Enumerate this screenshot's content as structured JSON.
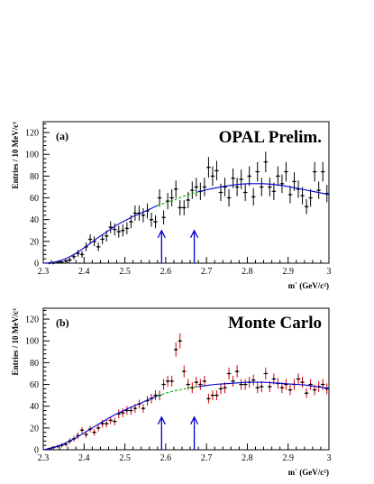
{
  "chart_data": [
    {
      "type": "scatter",
      "panel_label": "(a)",
      "title": "OPAL Prelim.",
      "xlabel": "m´ (GeV/c²)",
      "ylabel": "Entries / 10 MeV/c²",
      "xlim": [
        2.3,
        3.0
      ],
      "ylim": [
        0,
        130
      ],
      "x_ticks": [
        "2.3",
        "2.4",
        "2.5",
        "2.6",
        "2.7",
        "2.8",
        "2.9",
        "3"
      ],
      "y_ticks": [
        "0",
        "20",
        "40",
        "60",
        "80",
        "100",
        "120"
      ],
      "series": [
        {
          "name": "data",
          "style": "points-with-errors",
          "color": "#000000",
          "x": [
            2.315,
            2.325,
            2.335,
            2.345,
            2.355,
            2.365,
            2.375,
            2.385,
            2.395,
            2.405,
            2.415,
            2.425,
            2.435,
            2.445,
            2.455,
            2.465,
            2.475,
            2.485,
            2.495,
            2.505,
            2.515,
            2.525,
            2.535,
            2.545,
            2.555,
            2.565,
            2.575,
            2.585,
            2.595,
            2.605,
            2.615,
            2.625,
            2.635,
            2.645,
            2.655,
            2.665,
            2.675,
            2.685,
            2.695,
            2.705,
            2.715,
            2.725,
            2.735,
            2.745,
            2.755,
            2.765,
            2.775,
            2.785,
            2.795,
            2.805,
            2.815,
            2.825,
            2.835,
            2.845,
            2.855,
            2.865,
            2.875,
            2.885,
            2.895,
            2.905,
            2.915,
            2.925,
            2.935,
            2.945,
            2.955,
            2.965,
            2.975,
            2.985,
            2.995
          ],
          "y": [
            0,
            0,
            1,
            1,
            2,
            3,
            6,
            9,
            8,
            15,
            22,
            20,
            15,
            22,
            25,
            33,
            31,
            29,
            30,
            32,
            38,
            46,
            46,
            44,
            48,
            40,
            38,
            60,
            42,
            57,
            60,
            68,
            51,
            51,
            58,
            67,
            70,
            66,
            70,
            88,
            80,
            85,
            65,
            70,
            60,
            78,
            70,
            77,
            65,
            80,
            61,
            84,
            70,
            93,
            70,
            66,
            80,
            73,
            84,
            63,
            75,
            68,
            62,
            52,
            60,
            84,
            67,
            84,
            64
          ],
          "err": [
            1,
            1,
            1,
            1,
            1.5,
            2,
            2.5,
            3,
            3,
            4,
            4.5,
            4.5,
            4,
            4.5,
            5,
            5.5,
            5.5,
            5.5,
            5.5,
            5.5,
            6,
            7,
            7,
            6.5,
            7,
            6.5,
            6,
            8,
            6.5,
            7.5,
            8,
            8,
            7,
            7,
            7.5,
            8,
            8.5,
            8,
            8.5,
            9.5,
            9,
            9,
            8,
            8.5,
            8,
            9,
            8.5,
            9,
            8,
            9,
            8,
            9,
            8.5,
            9.5,
            8.5,
            8,
            9,
            8.5,
            9,
            8,
            8.5,
            8,
            8,
            7,
            8,
            9,
            8,
            9,
            8
          ]
        },
        {
          "name": "fit",
          "style": "line",
          "color": "#0000cc",
          "x": [
            2.3,
            2.32,
            2.34,
            2.36,
            2.38,
            2.4,
            2.42,
            2.44,
            2.46,
            2.48,
            2.5,
            2.52,
            2.54,
            2.56,
            2.58
          ],
          "y": [
            0,
            0.5,
            2,
            5,
            9,
            14,
            19.5,
            25,
            30,
            35,
            39,
            43,
            46,
            49.5,
            53
          ]
        },
        {
          "name": "fit (interpolated)",
          "style": "dashed",
          "color": "#00aa00",
          "x": [
            2.58,
            2.6,
            2.62,
            2.64,
            2.66,
            2.68
          ],
          "y": [
            53,
            55.5,
            58,
            61,
            63.5,
            65.5
          ]
        },
        {
          "name": "fit",
          "style": "line",
          "color": "#0000cc",
          "x": [
            2.68,
            2.7,
            2.72,
            2.74,
            2.76,
            2.78,
            2.8,
            2.82,
            2.84,
            2.86,
            2.88,
            2.9,
            2.92,
            2.94,
            2.96,
            2.98,
            3.0
          ],
          "y": [
            65.5,
            67.5,
            69,
            70.5,
            71.5,
            72.5,
            73,
            73,
            73,
            72.5,
            71.5,
            70.5,
            69,
            67.5,
            66,
            64.5,
            63
          ]
        }
      ],
      "arrows": [
        {
          "x": 2.59,
          "y_from": 0,
          "y_to": 30,
          "color": "#0000cc"
        },
        {
          "x": 2.67,
          "y_from": 0,
          "y_to": 30,
          "color": "#0000cc"
        }
      ]
    },
    {
      "type": "scatter",
      "panel_label": "(b)",
      "title": "Monte Carlo",
      "xlabel": "m´ (GeV/c²)",
      "ylabel": "Entries / 10 MeV/c²",
      "xlim": [
        2.3,
        3.0
      ],
      "ylim": [
        0,
        130
      ],
      "x_ticks": [
        "2.3",
        "2.4",
        "2.5",
        "2.6",
        "2.7",
        "2.8",
        "2.9",
        "3"
      ],
      "y_ticks": [
        "0",
        "20",
        "40",
        "60",
        "80",
        "100",
        "120"
      ],
      "series": [
        {
          "name": "monte carlo",
          "style": "points-with-errors",
          "color": "#000000",
          "err_color": "#cc0000",
          "x": [
            2.315,
            2.325,
            2.335,
            2.345,
            2.355,
            2.365,
            2.375,
            2.385,
            2.395,
            2.405,
            2.415,
            2.425,
            2.435,
            2.445,
            2.455,
            2.465,
            2.475,
            2.485,
            2.495,
            2.505,
            2.515,
            2.525,
            2.535,
            2.545,
            2.555,
            2.565,
            2.575,
            2.585,
            2.595,
            2.605,
            2.615,
            2.625,
            2.635,
            2.645,
            2.655,
            2.665,
            2.675,
            2.685,
            2.695,
            2.705,
            2.715,
            2.725,
            2.735,
            2.745,
            2.755,
            2.765,
            2.775,
            2.785,
            2.795,
            2.805,
            2.815,
            2.825,
            2.835,
            2.845,
            2.855,
            2.865,
            2.875,
            2.885,
            2.895,
            2.905,
            2.915,
            2.925,
            2.935,
            2.945,
            2.955,
            2.965,
            2.975,
            2.985,
            2.995
          ],
          "y": [
            1,
            2,
            3,
            4,
            5,
            8,
            10,
            13,
            18,
            14,
            19,
            16,
            20,
            24,
            24,
            27,
            26,
            33,
            34,
            36,
            36,
            38,
            42,
            38,
            45,
            47,
            50,
            50,
            60,
            63,
            63,
            92,
            100,
            72,
            60,
            57,
            62,
            60,
            63,
            47,
            50,
            50,
            56,
            57,
            70,
            63,
            72,
            60,
            60,
            62,
            64,
            57,
            58,
            70,
            58,
            65,
            61,
            57,
            60,
            55,
            60,
            65,
            62,
            52,
            60,
            55,
            58,
            60,
            56
          ],
          "err": [
            1,
            1.5,
            1.5,
            2,
            2,
            2.5,
            2.5,
            3,
            3,
            3,
            3,
            3,
            3,
            3.5,
            3.5,
            3.5,
            3.5,
            4,
            4,
            4,
            4,
            4,
            4,
            4,
            4.5,
            4.5,
            4.5,
            4.5,
            5,
            5,
            5,
            6.5,
            7,
            5.5,
            5,
            5,
            5,
            5,
            5,
            4.5,
            4.5,
            4.5,
            5,
            5,
            5.5,
            5,
            5.5,
            5,
            5,
            5,
            5,
            5,
            5,
            5.5,
            5,
            5,
            5,
            5,
            5,
            5,
            5,
            5,
            5,
            4.5,
            5,
            5,
            5,
            5,
            5
          ]
        },
        {
          "name": "fit",
          "style": "line",
          "color": "#0000cc",
          "x": [
            2.3,
            2.32,
            2.34,
            2.36,
            2.38,
            2.4,
            2.42,
            2.44,
            2.46,
            2.48,
            2.5,
            2.52,
            2.54,
            2.56,
            2.58
          ],
          "y": [
            0,
            1.5,
            4,
            7,
            11,
            15.5,
            20,
            24.5,
            29,
            33,
            36.5,
            40,
            43,
            46.5,
            49.5
          ]
        },
        {
          "name": "fit (interpolated)",
          "style": "dashed",
          "color": "#00aa00",
          "x": [
            2.58,
            2.6,
            2.62,
            2.64,
            2.66,
            2.68
          ],
          "y": [
            49.5,
            52,
            54,
            55.5,
            57,
            58
          ]
        },
        {
          "name": "fit",
          "style": "line",
          "color": "#0000cc",
          "x": [
            2.68,
            2.7,
            2.72,
            2.74,
            2.76,
            2.78,
            2.8,
            2.82,
            2.84,
            2.86,
            2.88,
            2.9,
            2.92,
            2.94,
            2.96,
            2.98,
            3.0
          ],
          "y": [
            58,
            59,
            60,
            60.5,
            61,
            61.5,
            62,
            62,
            62,
            61.5,
            61,
            60.5,
            60,
            59.5,
            58.5,
            57.5,
            56.5
          ]
        }
      ],
      "arrows": [
        {
          "x": 2.59,
          "y_from": 0,
          "y_to": 30,
          "color": "#0000cc"
        },
        {
          "x": 2.67,
          "y_from": 0,
          "y_to": 30,
          "color": "#0000cc"
        }
      ]
    }
  ]
}
